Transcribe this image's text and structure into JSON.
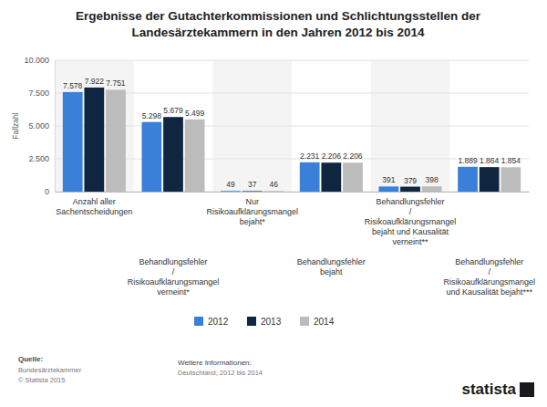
{
  "chart_data": {
    "type": "bar",
    "title": "Ergebnisse der Gutachterkommissionen und Schlichtungsstellen der\nLandesärztekammern in den Jahren 2012 bis 2014",
    "y_label": "Fallzahl",
    "categories": [
      "Anzahl aller\nSachentscheidungen",
      "Behandlungsfehler\n/\nRisikoaufklärungsmangel\nverneint*",
      "Nur\nRisikoaufklärungsmangel\nbejaht*",
      "Behandlungsfehler\nbejaht",
      "Behandlungsfehler\n/\nRisikoaufklärungsmangel\nbejaht und Kausalität\nverneint**",
      "Behandlungsfehler\n/\nRisikoaufklärungsmangel\nund Kausalität bejaht***"
    ],
    "series": [
      {
        "name": "2012",
        "color": "#3a80d9",
        "values": [
          7578,
          5298,
          49,
          2231,
          391,
          1889
        ],
        "value_labels": [
          "7.578",
          "5.298",
          "49",
          "2.231",
          "391",
          "1.889"
        ]
      },
      {
        "name": "2013",
        "color": "#0f2540",
        "values": [
          7922,
          5679,
          37,
          2206,
          379,
          1864
        ],
        "value_labels": [
          "7.922",
          "5.679",
          "37",
          "2.206",
          "379",
          "1.864"
        ]
      },
      {
        "name": "2014",
        "color": "#bcbcbc",
        "values": [
          7751,
          5499,
          46,
          2206,
          398,
          1854
        ],
        "value_labels": [
          "7.751",
          "5.499",
          "46",
          "2.206",
          "398",
          "1.854"
        ]
      }
    ],
    "ylim": [
      0,
      10000
    ],
    "yticks": [
      0,
      {
        "value": 2500,
        "label": "2.500"
      },
      {
        "value": 5000,
        "label": "5.000"
      },
      {
        "value": 7500,
        "label": "7.500"
      },
      {
        "value": 10000,
        "label": "10.000"
      }
    ],
    "grid": true,
    "legend": "bottom",
    "data_labels": true,
    "annotations": [
      "Quelle:",
      "Bundesärztekammer",
      "© Statista 2015",
      "Weitere Informationen:",
      "Deutschland; 2012 bis 2014",
      "statista"
    ]
  }
}
